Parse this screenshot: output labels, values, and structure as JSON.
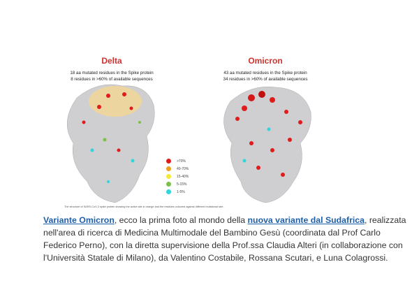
{
  "figure": {
    "delta": {
      "title": "Delta",
      "line1": "18 aa mutated residues in the Spike protein",
      "line2": "8 residues in >60% of available sequences"
    },
    "omicron": {
      "title": "Omicron",
      "line1": "43 aa mutated residues in the Spike protein",
      "line2": "34 residues in >60% of available sequences"
    },
    "legend": [
      {
        "label": ">70%",
        "color": "#e01b1b"
      },
      {
        "label": "40-70%",
        "color": "#f0a020"
      },
      {
        "label": "15-40%",
        "color": "#f5e83a"
      },
      {
        "label": "5-15%",
        "color": "#7cc04a"
      },
      {
        "label": "1-5%",
        "color": "#2fd6de"
      }
    ],
    "caption": "The structure of SARS-CoV-2 spike protein showing the active site in orange and the residues coloured against different mutational rate."
  },
  "article": {
    "link1": "Variante Omicron",
    "text1": ", ecco la prima foto al mondo della ",
    "link2": "nuova variante dal Sudafrica",
    "text2": ", realizzata nell'area di ricerca di Medicina Multimodale del Bambino Gesù (coordinata dal Prof Carlo Federico Perno), con la diretta supervisione della Prof.ssa Claudia Alteri (in collaborazione con l'Università Statale di Milano), da Valentino Costabile, Rossana Scutari, e Luna Colagrossi."
  }
}
